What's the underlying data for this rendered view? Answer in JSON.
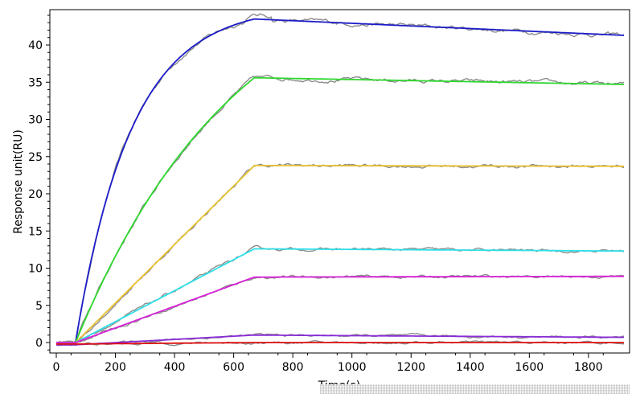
{
  "chart_data": {
    "type": "line",
    "title": "",
    "xlabel": "Time(s)",
    "ylabel": "Response unit(RU)",
    "xlim": [
      0,
      1930
    ],
    "ylim": [
      -1.5,
      45
    ],
    "xticks": [
      "0",
      "200",
      "400",
      "600",
      "800",
      "1000",
      "1200",
      "1400",
      "1600",
      "1800"
    ],
    "yticks": [
      "0",
      "5",
      "10",
      "15",
      "20",
      "25",
      "30",
      "35",
      "40"
    ],
    "grid": false,
    "legend": "none",
    "raw_color": "#8c8c8c",
    "series": [
      {
        "color": "#1c1cc8",
        "start": 0,
        "peak": 43.5,
        "plateau_end": 41.3,
        "curve": "concave"
      },
      {
        "color": "#2ed82e",
        "start": 0,
        "peak": 35.6,
        "plateau_end": 34.7,
        "curve": "mild"
      },
      {
        "color": "#e8c030",
        "start": 0,
        "peak": 23.8,
        "plateau_end": 23.7,
        "curve": "linear"
      },
      {
        "color": "#2ee0e8",
        "start": 0,
        "peak": 12.6,
        "plateau_end": 12.3,
        "curve": "linear"
      },
      {
        "color": "#d820d8",
        "start": 0,
        "peak": 8.8,
        "plateau_end": 8.9,
        "curve": "linear"
      },
      {
        "color": "#8a2ad8",
        "start": -0.3,
        "peak": 1.0,
        "plateau_end": 0.7,
        "curve": "linear"
      },
      {
        "color": "#e01010",
        "start": -0.2,
        "peak": 0.0,
        "plateau_end": 0.0,
        "curve": "linear"
      }
    ],
    "injection_start": 65,
    "injection_end": 670,
    "x_end": 1920
  }
}
